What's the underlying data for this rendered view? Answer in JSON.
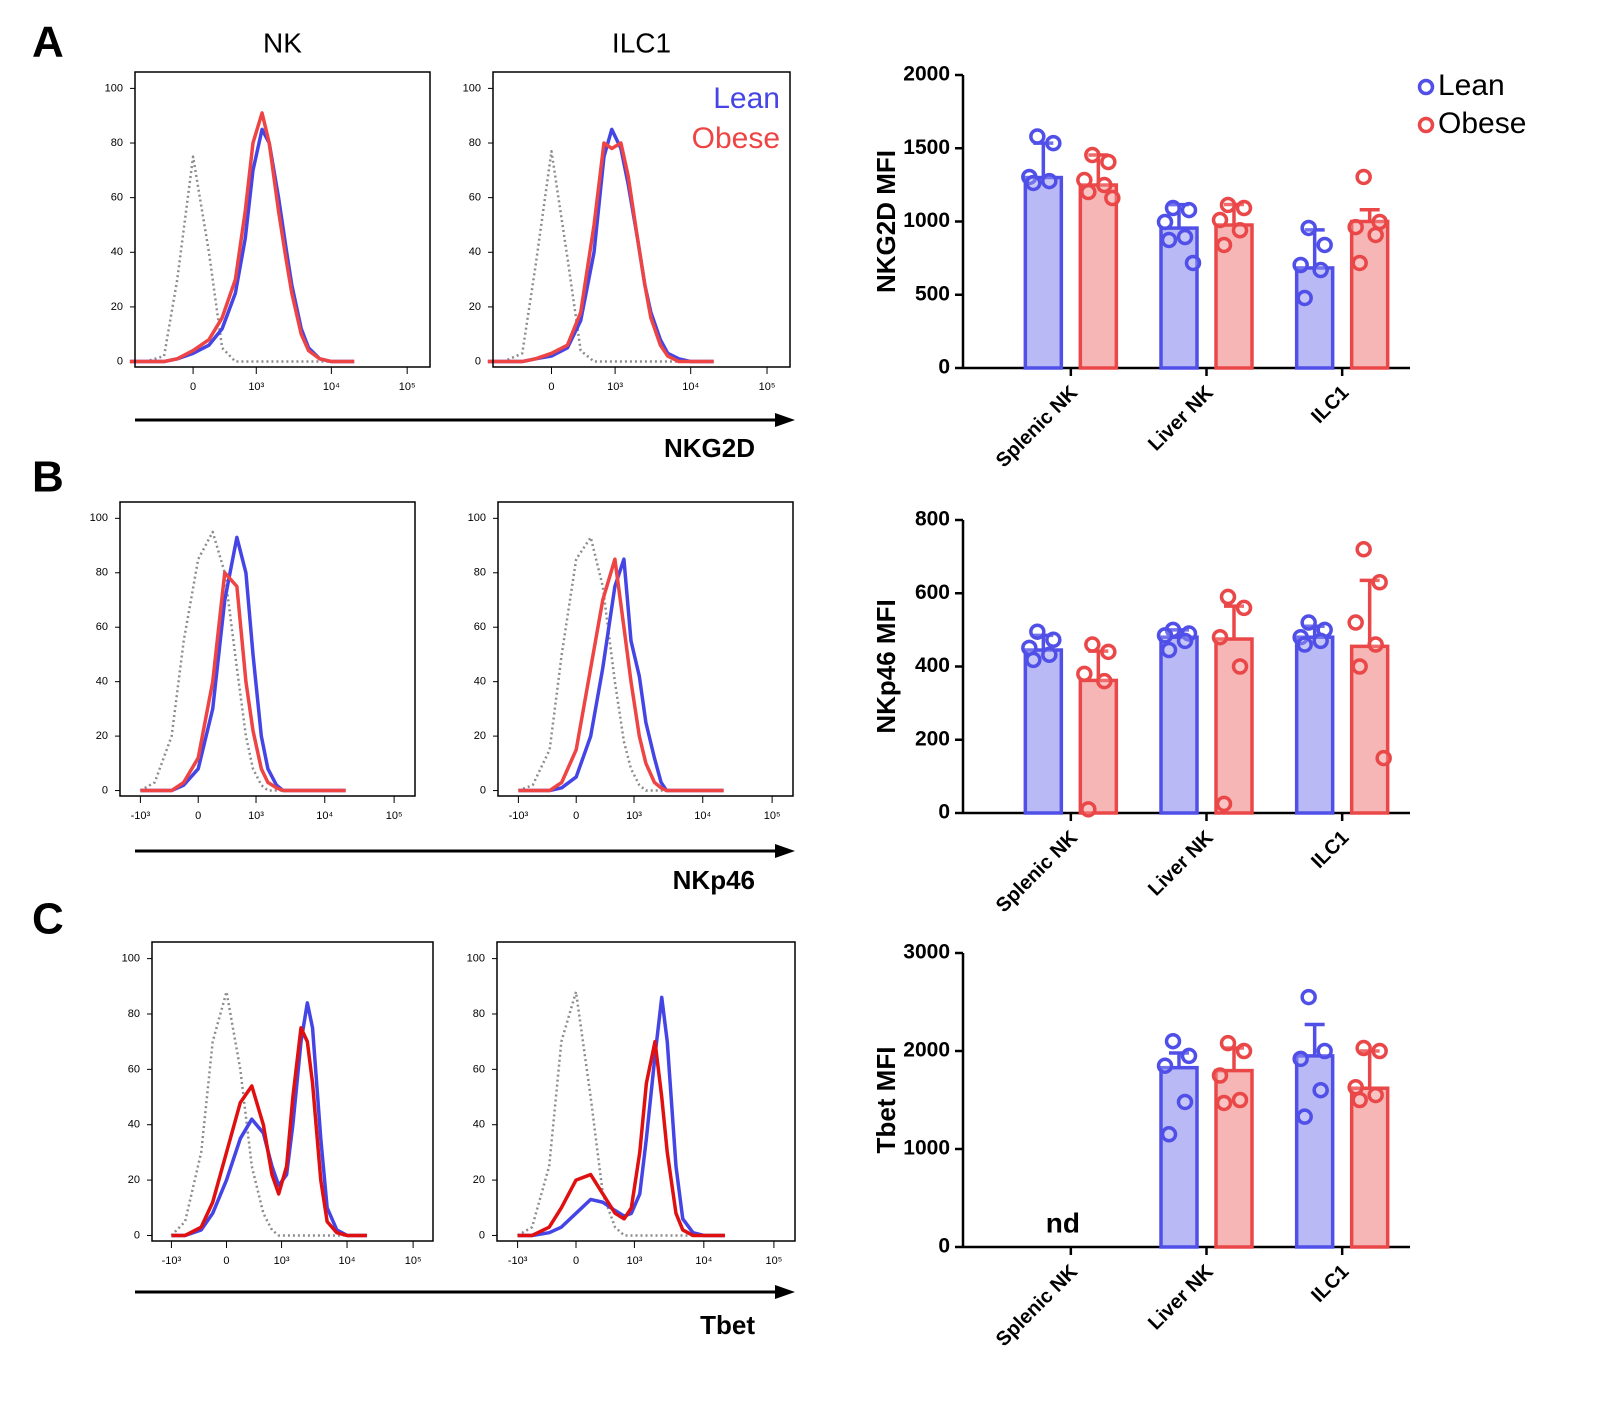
{
  "panels": [
    {
      "letter": "A",
      "xlabel": "NKG2D"
    },
    {
      "letter": "B",
      "xlabel": "NKp46"
    },
    {
      "letter": "C",
      "xlabel": "Tbet"
    }
  ],
  "chart_data": [
    {
      "type": "line",
      "title": "NK",
      "xscale": "biexponential",
      "x": [
        -1000,
        -600,
        -300,
        -150,
        0,
        150,
        300,
        500,
        700,
        900,
        1200,
        1500,
        2000,
        2500,
        3000,
        4000,
        5000,
        7000,
        10000,
        20000
      ],
      "xlim": [
        -850,
        200000
      ],
      "xticks": [
        0,
        {
          "value": 1000,
          "label": "10³"
        },
        {
          "value": 10000,
          "label": "10⁴"
        },
        {
          "value": 100000,
          "label": "10⁵"
        }
      ],
      "ylim": [
        -2,
        106
      ],
      "yticks": [
        0,
        20,
        40,
        60,
        80,
        100
      ],
      "series": [
        {
          "color": "#8c8c8c",
          "linestyle": "dotted",
          "values": [
            0,
            0,
            2,
            30,
            75,
            40,
            5,
            0,
            0,
            0,
            0,
            0,
            0,
            0,
            0,
            0,
            0,
            0,
            0,
            0
          ]
        },
        {
          "color": "#4545e6",
          "values": [
            0,
            0,
            0,
            1,
            3,
            6,
            12,
            25,
            45,
            70,
            85,
            80,
            60,
            42,
            28,
            12,
            5,
            1,
            0,
            0
          ]
        },
        {
          "color": "#ee4444",
          "values": [
            0,
            0,
            0,
            1,
            4,
            8,
            16,
            30,
            55,
            80,
            91,
            80,
            55,
            38,
            25,
            10,
            4,
            1,
            0,
            0
          ]
        }
      ]
    },
    {
      "type": "line",
      "title": "ILC1",
      "xscale": "biexponential",
      "x": [
        -1000,
        -600,
        -300,
        -150,
        0,
        150,
        300,
        500,
        700,
        900,
        1200,
        1500,
        2000,
        2500,
        3000,
        4000,
        5000,
        7000,
        10000,
        20000
      ],
      "xlim": [
        -850,
        200000
      ],
      "xticks": [
        0,
        {
          "value": 1000,
          "label": "10³"
        },
        {
          "value": 10000,
          "label": "10⁴"
        },
        {
          "value": 100000,
          "label": "10⁵"
        }
      ],
      "ylim": [
        -2,
        106
      ],
      "yticks": [
        0,
        20,
        40,
        60,
        80,
        100
      ],
      "legend": "upper right",
      "series": [
        {
          "color": "#8c8c8c",
          "linestyle": "dotted",
          "values": [
            0,
            0,
            3,
            35,
            77,
            38,
            4,
            0,
            0,
            0,
            0,
            0,
            0,
            0,
            0,
            0,
            0,
            0,
            0,
            0
          ]
        },
        {
          "name": "Lean",
          "color": "#4545e6",
          "values": [
            0,
            0,
            0,
            1,
            2,
            5,
            15,
            40,
            75,
            85,
            78,
            65,
            45,
            28,
            18,
            8,
            3,
            1,
            0,
            0
          ]
        },
        {
          "name": "Obese",
          "color": "#ee4444",
          "values": [
            0,
            0,
            0,
            1,
            3,
            6,
            18,
            50,
            80,
            78,
            80,
            68,
            45,
            28,
            16,
            6,
            2,
            0,
            0,
            0
          ]
        }
      ]
    },
    {
      "type": "bar",
      "ylabel": "NKG2D MFI",
      "categories": [
        "Splenic NK",
        "Liver NK",
        "ILC1"
      ],
      "ylim": [
        0,
        2000
      ],
      "yticks": [
        0,
        500,
        1000,
        1500,
        2000
      ],
      "legend": "right",
      "series": [
        {
          "name": "Lean",
          "color": "#5050e8",
          "values": [
            1300,
            955,
            683
          ],
          "errors": [
            235,
            160,
            260
          ],
          "points": [
            [
              1580,
              1535,
              1304,
              1276,
              1263
            ],
            [
              1092,
              1078,
              997,
              894,
              874,
              717
            ],
            [
              956,
              840,
              703,
              669,
              478
            ]
          ]
        },
        {
          "name": "Obese",
          "color": "#ea4848",
          "values": [
            1249,
            976,
            1000
          ],
          "errors": [
            205,
            140,
            80
          ],
          "points": [
            [
              1454,
              1406,
              1283,
              1249,
              1201,
              1160
            ],
            [
              1113,
              1092,
              1010,
              940,
              840
            ],
            [
              1304,
              997,
              962,
              908,
              717
            ]
          ]
        }
      ]
    },
    {
      "type": "line",
      "xscale": "biexponential",
      "x": [
        -1000,
        -600,
        -300,
        -150,
        0,
        150,
        300,
        500,
        700,
        900,
        1200,
        1500,
        2000,
        2500,
        3000,
        4000,
        5000,
        7000,
        10000,
        20000
      ],
      "xlim": [
        -2000,
        200000
      ],
      "xticks": [
        {
          "value": -1000,
          "label": "-10³"
        },
        0,
        {
          "value": 1000,
          "label": "10³"
        },
        {
          "value": 10000,
          "label": "10⁴"
        },
        {
          "value": 100000,
          "label": "10⁵"
        }
      ],
      "ylim": [
        -2,
        106
      ],
      "yticks": [
        0,
        20,
        40,
        60,
        80,
        100
      ],
      "series": [
        {
          "color": "#8c8c8c",
          "linestyle": "dotted",
          "values": [
            0,
            3,
            20,
            55,
            85,
            95,
            80,
            45,
            20,
            8,
            2,
            0,
            0,
            0,
            0,
            0,
            0,
            0,
            0,
            0
          ]
        },
        {
          "color": "#4545e6",
          "values": [
            0,
            0,
            0,
            2,
            8,
            30,
            70,
            93,
            80,
            50,
            20,
            8,
            2,
            0,
            0,
            0,
            0,
            0,
            0,
            0
          ]
        },
        {
          "color": "#ee4444",
          "values": [
            0,
            0,
            0,
            3,
            12,
            40,
            80,
            75,
            40,
            22,
            8,
            3,
            1,
            0,
            0,
            0,
            0,
            0,
            0,
            0
          ]
        }
      ]
    },
    {
      "type": "line",
      "xscale": "biexponential",
      "x": [
        -1000,
        -600,
        -300,
        -150,
        0,
        150,
        300,
        500,
        700,
        900,
        1200,
        1500,
        2000,
        2500,
        3000,
        4000,
        5000,
        7000,
        10000,
        20000
      ],
      "xlim": [
        -2000,
        200000
      ],
      "xticks": [
        {
          "value": -1000,
          "label": "-10³"
        },
        0,
        {
          "value": 1000,
          "label": "10³"
        },
        {
          "value": 10000,
          "label": "10⁴"
        },
        {
          "value": 100000,
          "label": "10⁵"
        }
      ],
      "ylim": [
        -2,
        106
      ],
      "yticks": [
        0,
        20,
        40,
        60,
        80,
        100
      ],
      "series": [
        {
          "color": "#8c8c8c",
          "linestyle": "dotted",
          "values": [
            0,
            2,
            15,
            50,
            85,
            93,
            75,
            40,
            18,
            8,
            2,
            0,
            0,
            0,
            0,
            0,
            0,
            0,
            0,
            0
          ]
        },
        {
          "color": "#4545e6",
          "values": [
            0,
            0,
            0,
            1,
            5,
            20,
            45,
            75,
            85,
            55,
            42,
            25,
            12,
            3,
            0,
            0,
            0,
            0,
            0,
            0
          ]
        },
        {
          "color": "#ee4444",
          "values": [
            0,
            0,
            0,
            3,
            15,
            45,
            70,
            85,
            60,
            40,
            20,
            10,
            3,
            1,
            0,
            0,
            0,
            0,
            0,
            0
          ]
        }
      ]
    },
    {
      "type": "bar",
      "ylabel": "NKp46 MFI",
      "categories": [
        "Splenic NK",
        "Liver NK",
        "ILC1"
      ],
      "ylim": [
        0,
        800
      ],
      "yticks": [
        0,
        200,
        400,
        600,
        800
      ],
      "series": [
        {
          "color": "#5050e8",
          "values": [
            445,
            480,
            480
          ],
          "errors": [
            40,
            20,
            30
          ],
          "points": [
            [
              495,
              473,
              451,
              432,
              418
            ],
            [
              500,
              490,
              485,
              470,
              445
            ],
            [
              520,
              500,
              480,
              470,
              460
            ]
          ]
        },
        {
          "color": "#ea4848",
          "values": [
            362,
            475,
            455
          ],
          "errors": [
            80,
            90,
            180
          ],
          "points": [
            [
              460,
              440,
              380,
              360,
              10
            ],
            [
              590,
              560,
              480,
              400,
              25
            ],
            [
              720,
              630,
              520,
              460,
              400,
              150
            ]
          ]
        }
      ]
    },
    {
      "type": "line",
      "xscale": "biexponential",
      "x": [
        -1000,
        -600,
        -300,
        -150,
        0,
        150,
        300,
        500,
        700,
        900,
        1200,
        1500,
        2000,
        2500,
        3000,
        4000,
        5000,
        7000,
        10000,
        20000
      ],
      "xlim": [
        -2000,
        200000
      ],
      "xticks": [
        {
          "value": -1000,
          "label": "-10³"
        },
        0,
        {
          "value": 1000,
          "label": "10³"
        },
        {
          "value": 10000,
          "label": "10⁴"
        },
        {
          "value": 100000,
          "label": "10⁵"
        }
      ],
      "ylim": [
        -2,
        106
      ],
      "yticks": [
        0,
        20,
        40,
        60,
        80,
        100
      ],
      "series": [
        {
          "color": "#8c8c8c",
          "linestyle": "dotted",
          "values": [
            0,
            5,
            30,
            70,
            88,
            60,
            25,
            8,
            2,
            0,
            0,
            0,
            0,
            0,
            0,
            0,
            0,
            0,
            0,
            0
          ]
        },
        {
          "color": "#4545e6",
          "values": [
            0,
            0,
            2,
            8,
            20,
            35,
            42,
            37,
            25,
            18,
            22,
            40,
            70,
            84,
            75,
            35,
            10,
            2,
            0,
            0
          ]
        },
        {
          "color": "#e01010",
          "values": [
            0,
            0,
            3,
            12,
            30,
            48,
            54,
            40,
            22,
            15,
            25,
            50,
            75,
            70,
            55,
            20,
            5,
            1,
            0,
            0
          ]
        }
      ]
    },
    {
      "type": "line",
      "xscale": "biexponential",
      "x": [
        -1000,
        -600,
        -300,
        -150,
        0,
        150,
        300,
        500,
        700,
        900,
        1200,
        1500,
        2000,
        2500,
        3000,
        4000,
        5000,
        7000,
        10000,
        20000
      ],
      "xlim": [
        -2000,
        200000
      ],
      "xticks": [
        {
          "value": -1000,
          "label": "-10³"
        },
        0,
        {
          "value": 1000,
          "label": "10³"
        },
        {
          "value": 10000,
          "label": "10⁴"
        },
        {
          "value": 100000,
          "label": "10⁵"
        }
      ],
      "ylim": [
        -2,
        106
      ],
      "yticks": [
        0,
        20,
        40,
        60,
        80,
        100
      ],
      "series": [
        {
          "color": "#8c8c8c",
          "linestyle": "dotted",
          "values": [
            0,
            3,
            25,
            70,
            88,
            50,
            15,
            3,
            0,
            0,
            0,
            0,
            0,
            0,
            0,
            0,
            0,
            0,
            0,
            0
          ]
        },
        {
          "color": "#4545e6",
          "values": [
            0,
            0,
            1,
            3,
            8,
            13,
            12,
            9,
            7,
            8,
            15,
            35,
            65,
            86,
            70,
            25,
            6,
            1,
            0,
            0
          ]
        },
        {
          "color": "#e01010",
          "values": [
            0,
            0,
            3,
            10,
            20,
            22,
            15,
            8,
            6,
            10,
            30,
            55,
            70,
            50,
            30,
            8,
            2,
            0,
            0,
            0
          ]
        }
      ]
    },
    {
      "type": "bar",
      "ylabel": "Tbet MFI",
      "categories": [
        "Splenic NK",
        "Liver NK",
        "ILC1"
      ],
      "ylim": [
        0,
        3000
      ],
      "yticks": [
        0,
        1000,
        2000,
        3000
      ],
      "annotation": "nd",
      "series": [
        {
          "color": "#5050e8",
          "values": [
            null,
            1830,
            1950
          ],
          "errors": [
            null,
            150,
            320
          ],
          "points": [
            null,
            [
              2100,
              1950,
              1850,
              1480,
              1150
            ],
            [
              2550,
              2000,
              1920,
              1600,
              1330
            ]
          ]
        },
        {
          "color": "#ea4848",
          "values": [
            null,
            1800,
            1620
          ],
          "errors": [
            null,
            230,
            380
          ],
          "points": [
            null,
            [
              2080,
              2000,
              1750,
              1500,
              1470
            ],
            [
              2030,
              2000,
              1630,
              1550,
              1500
            ]
          ]
        }
      ]
    }
  ]
}
